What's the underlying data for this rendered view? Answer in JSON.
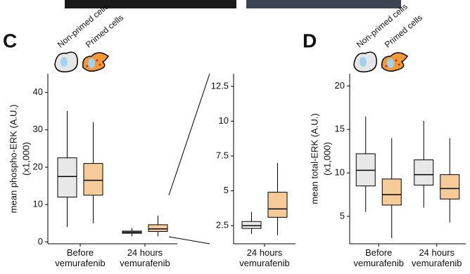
{
  "chart_data": [
    {
      "type": "box",
      "panel_label": "C",
      "y_label": [
        "mean phospho-ERK (A.U.)",
        "(x1,000)"
      ],
      "categories": [
        "Before vemurafenib",
        "24 hours vemurafenib"
      ],
      "ylim": [
        -0.5,
        45
      ],
      "yticks": [
        0,
        10,
        20,
        30,
        40
      ],
      "series": [
        {
          "name": "Non-primed cells",
          "color": "#e6e6e6",
          "values": [
            [
              4,
              12,
              17.5,
              22.5,
              35
            ],
            [
              1.5,
              2.3,
              2.6,
              2.9,
              3.7
            ]
          ]
        },
        {
          "name": "Primed cells",
          "color": "#f6c58d",
          "values": [
            [
              5,
              12.5,
              16.5,
              21,
              32
            ],
            [
              1.5,
              2.8,
              3.5,
              4.6,
              7
            ]
          ]
        }
      ]
    },
    {
      "type": "box",
      "categories": [
        "24 hours vemurafenib"
      ],
      "ylim": [
        1.2,
        13.4
      ],
      "yticks": [
        2.5,
        5,
        7.5,
        10,
        12.5
      ],
      "series": [
        {
          "color": "#e6e6e6",
          "values": [
            [
              1.9,
              2.3,
              2.5,
              2.8,
              3.5
            ]
          ]
        },
        {
          "color": "#f6c58d",
          "values": [
            [
              1.8,
              3.1,
              3.7,
              4.9,
              7
            ]
          ]
        }
      ]
    },
    {
      "type": "box",
      "panel_label": "D",
      "y_label": [
        "mean total-ERK (A.U.)",
        "(x1,000)"
      ],
      "categories": [
        "Before vemurafenib",
        "24 hours vemurafenib"
      ],
      "ylim": [
        1.85,
        21.4
      ],
      "yticks": [
        5,
        10,
        15,
        20
      ],
      "series": [
        {
          "name": "Non-primed cells",
          "color": "#e6e6e6",
          "values": [
            [
              5.5,
              8.5,
              10.3,
              12.2,
              16.5
            ],
            [
              6,
              8.6,
              9.8,
              11.5,
              16
            ]
          ]
        },
        {
          "name": "Primed cells",
          "color": "#f6c58d",
          "values": [
            [
              2.5,
              6.3,
              7.5,
              9.3,
              14
            ],
            [
              4.3,
              7,
              8.2,
              9.8,
              14
            ]
          ]
        }
      ]
    }
  ]
}
